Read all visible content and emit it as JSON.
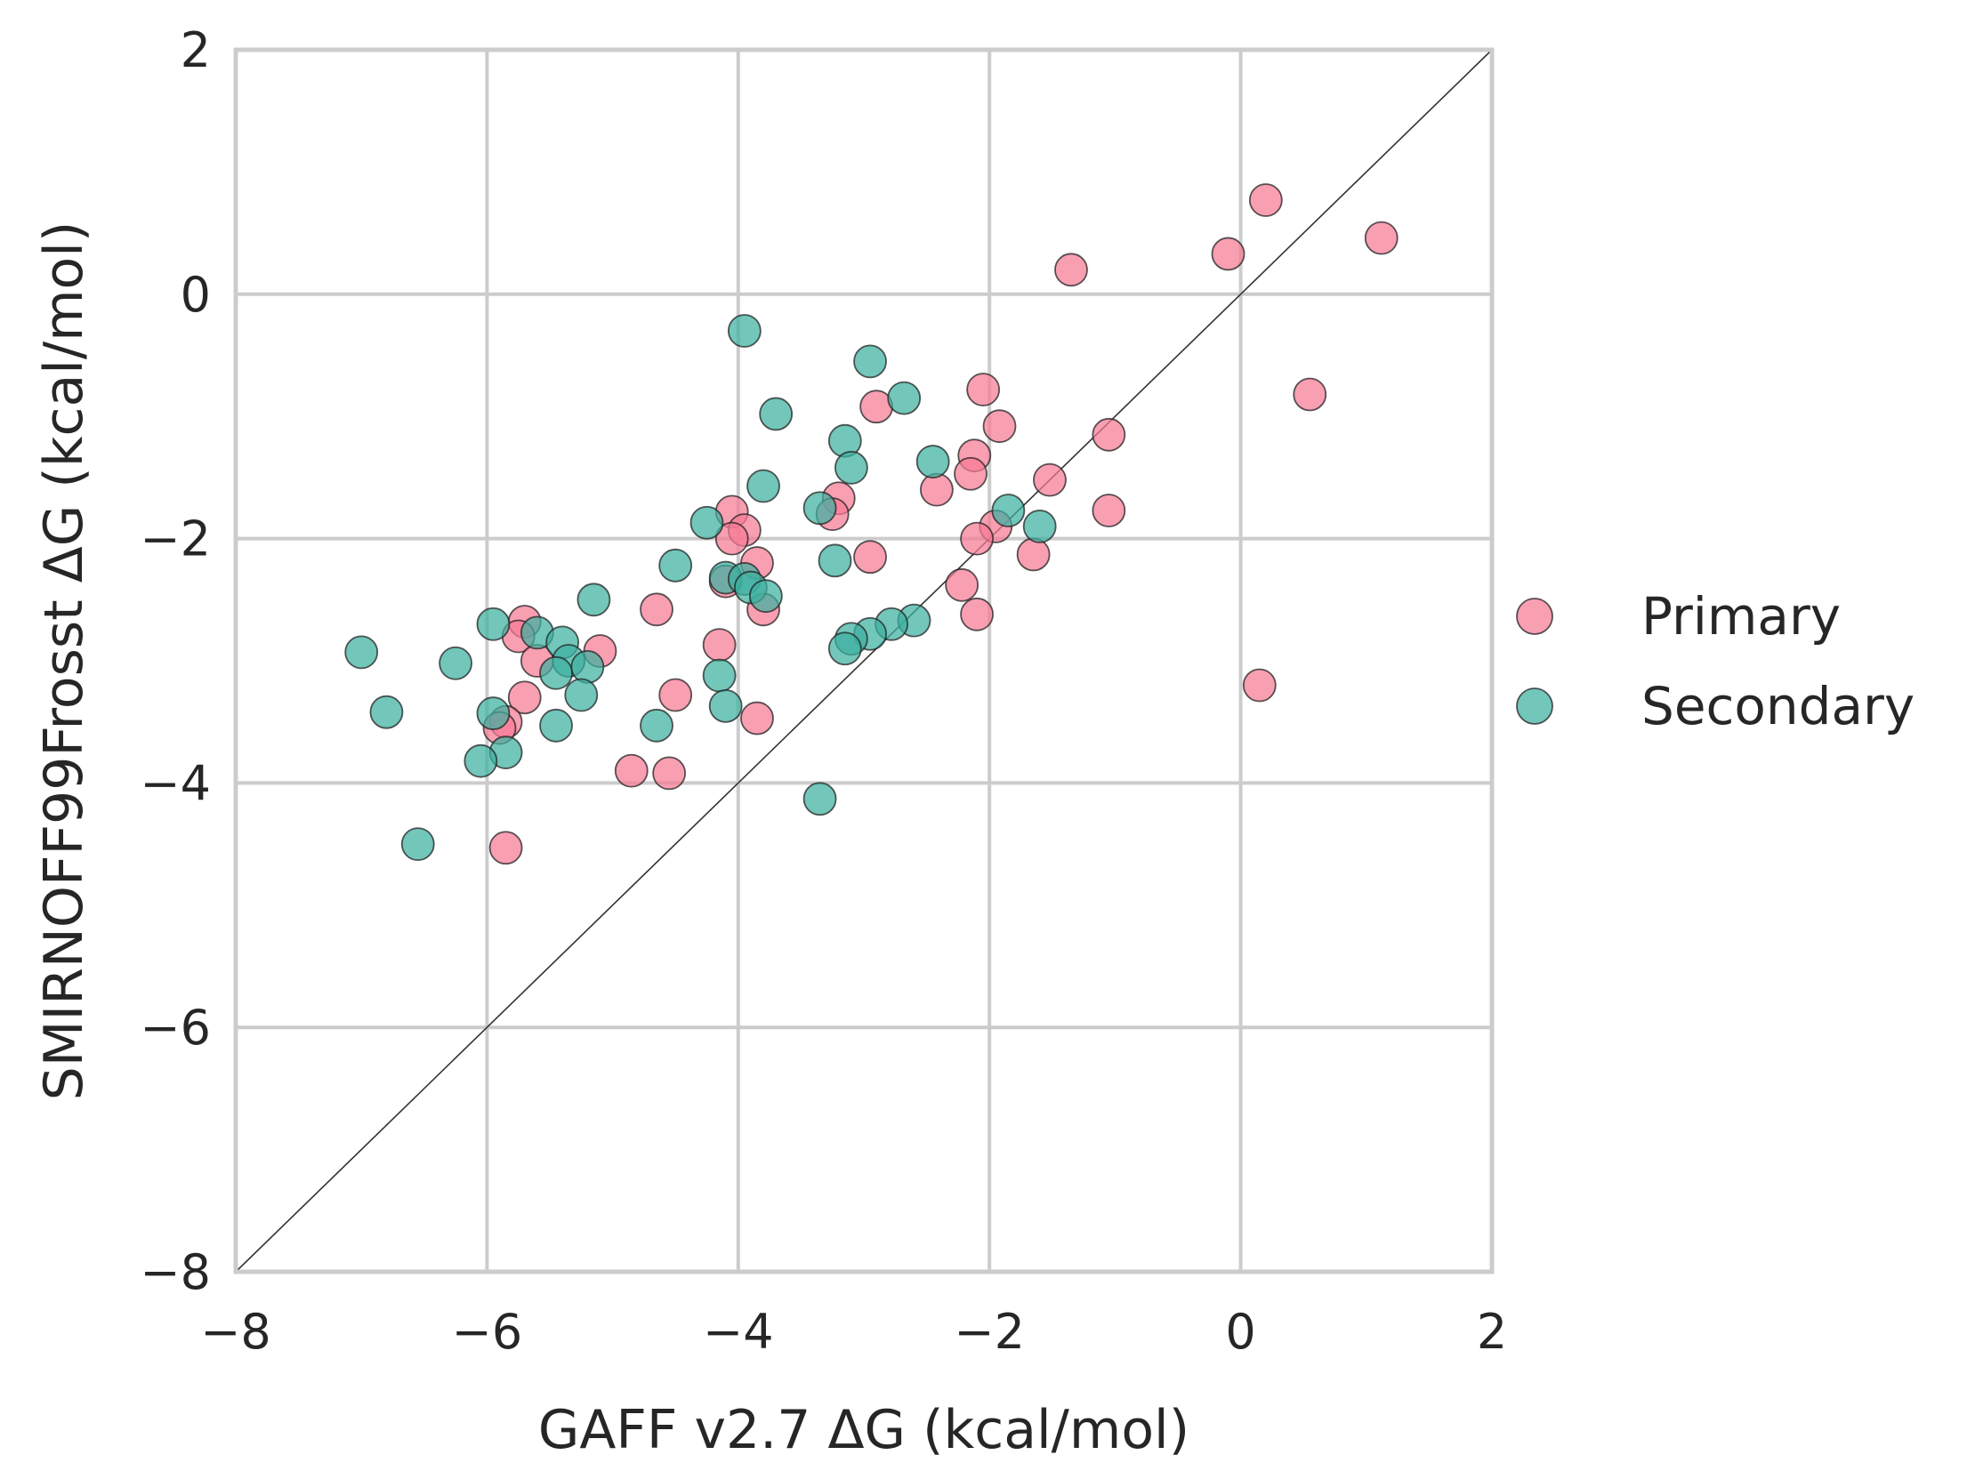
{
  "chart_data": {
    "type": "scatter",
    "xlabel": "GAFF v2.7 ΔG (kcal/mol)",
    "ylabel": "SMIRNOFF99Frosst ΔG (kcal/mol)",
    "xlim": [
      -8,
      2
    ],
    "ylim": [
      -8,
      2
    ],
    "x_ticks": [
      -8,
      -6,
      -4,
      -2,
      0,
      2
    ],
    "y_ticks": [
      -8,
      -6,
      -4,
      -2,
      0,
      2
    ],
    "x_tick_labels": [
      "−8",
      "−6",
      "−4",
      "−2",
      "0",
      "2"
    ],
    "y_tick_labels": [
      "−8",
      "−6",
      "−4",
      "−2",
      "0",
      "2"
    ],
    "grid": true,
    "identity_line": true,
    "legend": {
      "placement": "right-outside"
    },
    "series": [
      {
        "name": "Primary",
        "color": "#f67a94",
        "points": [
          [
            0.2,
            0.77
          ],
          [
            -0.1,
            0.33
          ],
          [
            1.12,
            0.46
          ],
          [
            -1.35,
            0.2
          ],
          [
            0.55,
            -0.82
          ],
          [
            0.15,
            -3.2
          ],
          [
            -2.05,
            -0.78
          ],
          [
            -1.92,
            -1.08
          ],
          [
            -2.12,
            -1.32
          ],
          [
            -2.15,
            -1.47
          ],
          [
            -2.42,
            -1.6
          ],
          [
            -1.52,
            -1.52
          ],
          [
            -1.05,
            -1.15
          ],
          [
            -1.05,
            -1.77
          ],
          [
            -1.65,
            -2.13
          ],
          [
            -1.95,
            -1.9
          ],
          [
            -2.1,
            -2.0
          ],
          [
            -2.22,
            -2.38
          ],
          [
            -2.1,
            -2.62
          ],
          [
            -2.9,
            -0.92
          ],
          [
            -3.2,
            -1.67
          ],
          [
            -3.25,
            -1.8
          ],
          [
            -2.95,
            -2.15
          ],
          [
            -4.05,
            -1.78
          ],
          [
            -3.95,
            -1.93
          ],
          [
            -4.05,
            -2.0
          ],
          [
            -3.85,
            -2.2
          ],
          [
            -4.1,
            -2.35
          ],
          [
            -3.8,
            -2.58
          ],
          [
            -4.15,
            -2.87
          ],
          [
            -3.85,
            -3.47
          ],
          [
            -4.5,
            -3.28
          ],
          [
            -4.65,
            -2.58
          ],
          [
            -4.85,
            -3.9
          ],
          [
            -4.55,
            -3.92
          ],
          [
            -5.1,
            -2.92
          ],
          [
            -5.7,
            -2.68
          ],
          [
            -5.75,
            -2.8
          ],
          [
            -5.6,
            -3.0
          ],
          [
            -5.7,
            -3.3
          ],
          [
            -5.85,
            -3.5
          ],
          [
            -5.9,
            -3.55
          ],
          [
            -5.85,
            -4.53
          ]
        ]
      },
      {
        "name": "Secondary",
        "color": "#3bb0a0",
        "points": [
          [
            -3.95,
            -0.3
          ],
          [
            -2.95,
            -0.55
          ],
          [
            -2.68,
            -0.85
          ],
          [
            -3.7,
            -0.98
          ],
          [
            -3.15,
            -1.2
          ],
          [
            -3.1,
            -1.42
          ],
          [
            -2.45,
            -1.37
          ],
          [
            -3.8,
            -1.57
          ],
          [
            -3.35,
            -1.75
          ],
          [
            -4.25,
            -1.87
          ],
          [
            -1.85,
            -1.77
          ],
          [
            -1.6,
            -1.9
          ],
          [
            -3.23,
            -2.18
          ],
          [
            -4.5,
            -2.22
          ],
          [
            -4.1,
            -2.32
          ],
          [
            -3.95,
            -2.33
          ],
          [
            -3.9,
            -2.4
          ],
          [
            -3.78,
            -2.47
          ],
          [
            -2.6,
            -2.67
          ],
          [
            -2.78,
            -2.7
          ],
          [
            -2.95,
            -2.78
          ],
          [
            -3.1,
            -2.82
          ],
          [
            -3.15,
            -2.9
          ],
          [
            -5.15,
            -2.5
          ],
          [
            -5.95,
            -2.7
          ],
          [
            -5.6,
            -2.77
          ],
          [
            -5.4,
            -2.85
          ],
          [
            -5.35,
            -3.0
          ],
          [
            -5.45,
            -3.1
          ],
          [
            -5.2,
            -3.05
          ],
          [
            -5.25,
            -3.28
          ],
          [
            -4.15,
            -3.12
          ],
          [
            -4.1,
            -3.37
          ],
          [
            -4.65,
            -3.53
          ],
          [
            -5.45,
            -3.53
          ],
          [
            -6.25,
            -3.02
          ],
          [
            -7.0,
            -2.93
          ],
          [
            -6.8,
            -3.42
          ],
          [
            -5.95,
            -3.43
          ],
          [
            -5.85,
            -3.75
          ],
          [
            -6.05,
            -3.82
          ],
          [
            -6.55,
            -4.5
          ],
          [
            -3.35,
            -4.13
          ]
        ]
      }
    ]
  }
}
